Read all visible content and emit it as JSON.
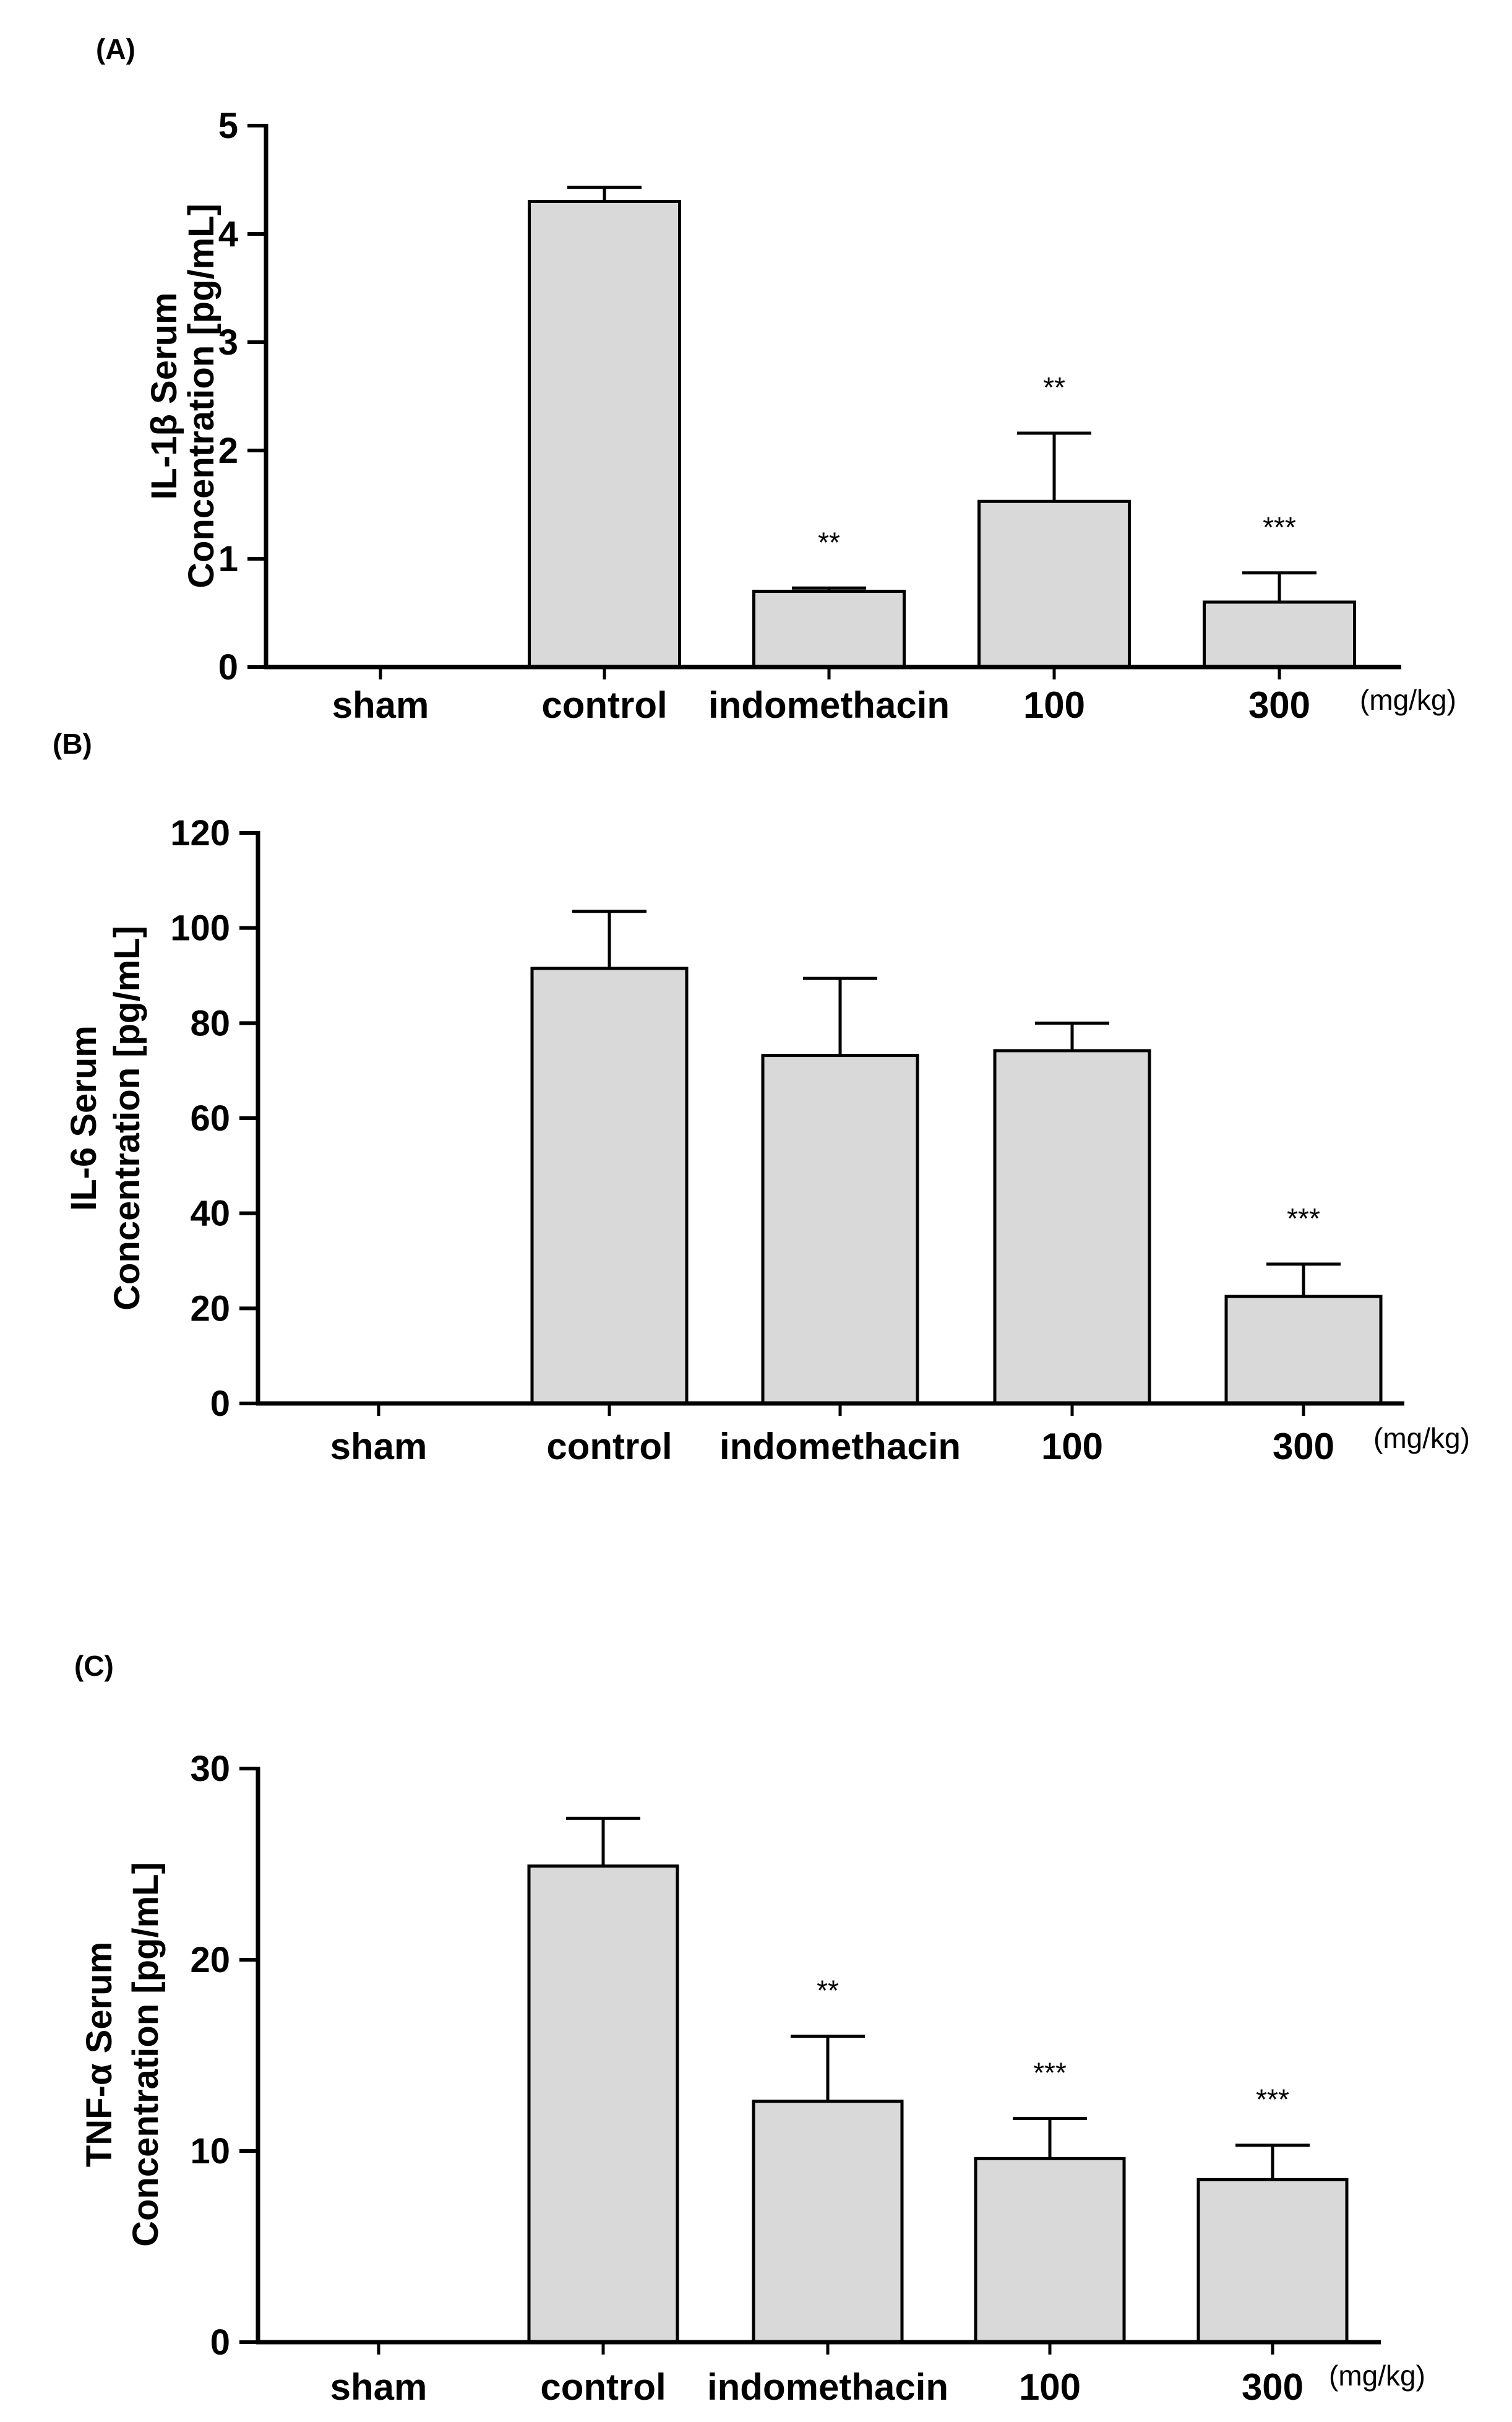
{
  "chart_data": [
    {
      "type": "bar",
      "panel_label": "(A)",
      "categories": [
        "sham",
        "control",
        "indomethacin",
        "100",
        "300"
      ],
      "values": [
        0,
        4.3,
        0.7,
        1.53,
        0.6
      ],
      "errors": [
        0,
        0.13,
        0.03,
        0.63,
        0.27
      ],
      "significance": [
        "",
        "",
        "**",
        "**",
        "***"
      ],
      "unit_note": "(mg/kg)",
      "ylabel_line1": "IL-1β Serum",
      "ylabel_line2": "Concentration [pg/mL]",
      "ylim": [
        0,
        5
      ],
      "yticks": [
        0,
        1,
        2,
        3,
        4,
        5
      ],
      "bar_color": "#d9d9d9"
    },
    {
      "type": "bar",
      "panel_label": "(B)",
      "categories": [
        "sham",
        "control",
        "indomethacin",
        "100",
        "300"
      ],
      "values": [
        0,
        91.5,
        73.2,
        74.2,
        22.5
      ],
      "errors": [
        0,
        12.0,
        16.2,
        5.8,
        6.8
      ],
      "significance": [
        "",
        "",
        "",
        "",
        "***"
      ],
      "unit_note": "(mg/kg)",
      "ylabel_line1": "IL-6 Serum",
      "ylabel_line2": "Concentration [pg/mL]",
      "ylim": [
        0,
        120
      ],
      "yticks": [
        0,
        20,
        40,
        60,
        80,
        100,
        120
      ],
      "bar_color": "#d9d9d9"
    },
    {
      "type": "bar",
      "panel_label": "(C)",
      "categories": [
        "sham",
        "control",
        "indomethacin",
        "100",
        "300"
      ],
      "values": [
        0,
        24.9,
        12.6,
        9.6,
        8.5
      ],
      "errors": [
        0,
        2.5,
        3.4,
        2.1,
        1.8
      ],
      "significance": [
        "",
        "",
        "**",
        "***",
        "***"
      ],
      "unit_note": "(mg/kg)",
      "ylabel_line1": "TNF-α Serum",
      "ylabel_line2": "Concentration [pg/mL]",
      "ylim": [
        0,
        30
      ],
      "yticks": [
        0,
        10,
        20,
        30
      ],
      "bar_color": "#d9d9d9"
    }
  ]
}
